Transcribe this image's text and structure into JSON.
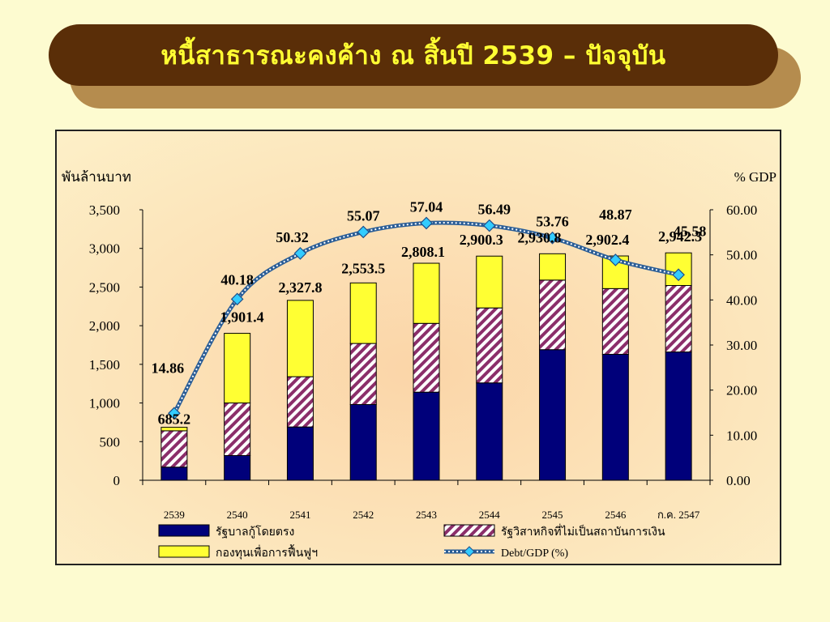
{
  "title": "หนี้สาธารณะคงค้าง ณ สิ้นปี 2539 – ปัจจุบัน",
  "colors": {
    "background": "#fdfbd0",
    "title_bar": "#5a2e08",
    "title_shadow": "#b58c4e",
    "title_text": "#ffff33",
    "plot_bg": "#fdecc0",
    "government": "#00007a",
    "state_enterprise": "#cc99bb",
    "state_enterprise_hatch": "#8b2e6a",
    "fidf": "#ffff33",
    "debt_gdp_line": "#3c78b4",
    "debt_gdp_marker": "#33ccff"
  },
  "chart_data": {
    "type": "bar",
    "stacked": true,
    "categories": [
      "2539",
      "2540",
      "2541",
      "2542",
      "2543",
      "2544",
      "2545",
      "2546",
      "ก.ค. 2547"
    ],
    "ylabel": "พันล้านบาท",
    "y2label": "% GDP",
    "ylim": [
      0,
      3500
    ],
    "y2lim": [
      0,
      60
    ],
    "yticks": [
      "0",
      "500",
      "1,000",
      "1,500",
      "2,000",
      "2,500",
      "3,000",
      "3,500"
    ],
    "y2ticks": [
      "0.00",
      "10.00",
      "20.00",
      "30.00",
      "40.00",
      "50.00",
      "60.00"
    ],
    "series": [
      {
        "name": "รัฐบาลกู้โดยตรง",
        "kind": "bar",
        "values": [
          170,
          320,
          690,
          980,
          1140,
          1260,
          1690,
          1630,
          1660
        ]
      },
      {
        "name": "รัฐวิสาหกิจที่ไม่เป็นสถาบันการเงิน",
        "kind": "bar",
        "values": [
          470,
          680,
          650,
          790,
          890,
          970,
          900,
          850,
          860
        ]
      },
      {
        "name": "กองทุนเพื่อการฟื้นฟูฯ",
        "kind": "bar",
        "values": [
          45.2,
          901.4,
          987.8,
          783.5,
          778.1,
          670.3,
          340.8,
          422.4,
          422.3
        ]
      },
      {
        "name": "Debt/GDP (%)",
        "kind": "line",
        "axis": "right",
        "values": [
          14.86,
          40.18,
          50.32,
          55.07,
          57.04,
          56.49,
          53.76,
          48.87,
          45.58
        ]
      }
    ],
    "total_labels": [
      "685.2",
      "1,901.4",
      "2,327.8",
      "2,553.5",
      "2,808.1",
      "2,900.3",
      "2,930.8",
      "2,902.4",
      "2,942.3"
    ],
    "ratio_labels": [
      "14.86",
      "40.18",
      "50.32",
      "55.07",
      "57.04",
      "56.49",
      "53.76",
      "48.87",
      "45.58"
    ],
    "legend_placement": "bottom",
    "grid": false
  }
}
